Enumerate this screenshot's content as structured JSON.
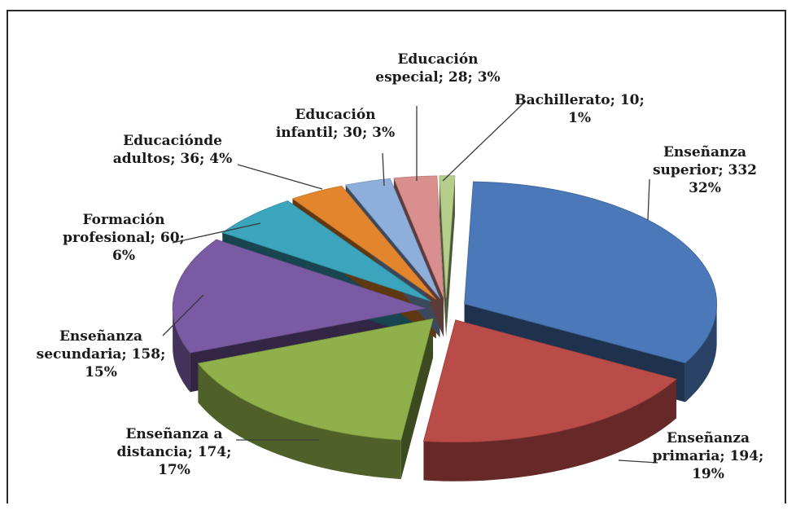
{
  "chart_data": {
    "type": "pie",
    "style": "3d-exploded",
    "slices": [
      {
        "label": "Enseñanza superior",
        "value": 332,
        "percent": "32%",
        "color": "#4a78b8",
        "text": [
          "Enseñanza",
          "superior; 332",
          "32%"
        ]
      },
      {
        "label": "Enseñanza primaria",
        "value": 194,
        "percent": "19%",
        "color": "#b94b48",
        "text": [
          "Enseñanza",
          "primaria; 194;",
          "19%"
        ]
      },
      {
        "label": "Enseñanza a distancia",
        "value": 174,
        "percent": "17%",
        "color": "#8fb04a",
        "text": [
          "Enseñanza a",
          "distancia; 174;",
          "17%"
        ]
      },
      {
        "label": "Enseñanza secundaria",
        "value": 158,
        "percent": "15%",
        "color": "#7a5aa2",
        "text": [
          "Enseñanza",
          "secundaria; 158;",
          "15%"
        ]
      },
      {
        "label": "Formación profesional",
        "value": 60,
        "percent": "6%",
        "color": "#3aa5bd",
        "text": [
          "Formación",
          "profesional; 60;",
          "6%"
        ]
      },
      {
        "label": "Educación de adultos",
        "value": 36,
        "percent": "4%",
        "color": "#e2852c",
        "text": [
          "Educaciónde",
          "adultos; 36; 4%"
        ]
      },
      {
        "label": "Educación infantil",
        "value": 30,
        "percent": "3%",
        "color": "#8eaedb",
        "text": [
          "Educación",
          "infantil; 30; 3%"
        ]
      },
      {
        "label": "Educación especial",
        "value": 28,
        "percent": "3%",
        "color": "#d98f8d",
        "text": [
          "Educación",
          "especial; 28; 3%"
        ]
      },
      {
        "label": "Bachillerato",
        "value": 10,
        "percent": "1%",
        "color": "#b5cf8a",
        "text": [
          "Bachillerato; 10;",
          "1%"
        ]
      }
    ]
  }
}
